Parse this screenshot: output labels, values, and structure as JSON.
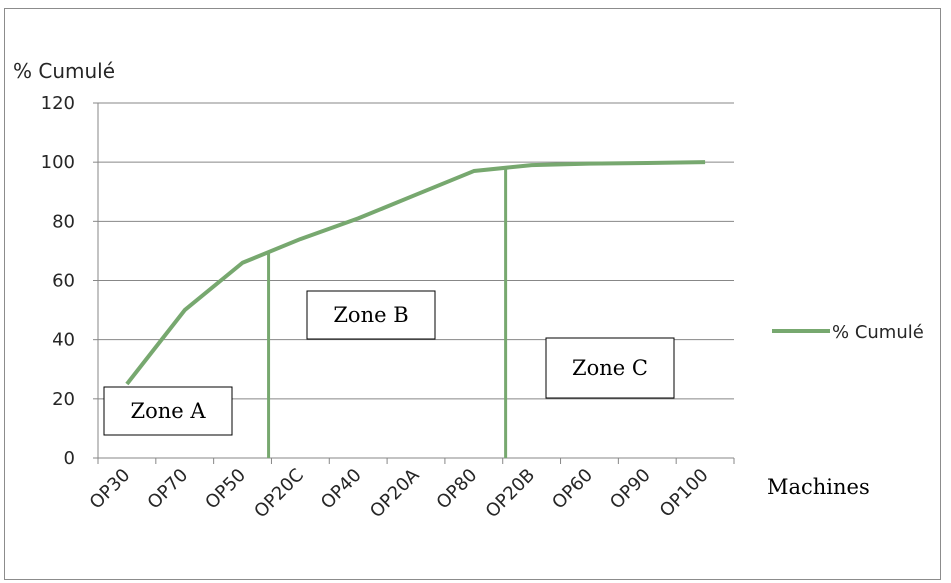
{
  "chart_data": {
    "type": "line",
    "ylabel": "% Cumulé",
    "xlabel": "Machines",
    "categories": [
      "OP30",
      "OP70",
      "OP50",
      "OP20C",
      "OP40",
      "OP20A",
      "OP80",
      "OP20B",
      "OP60",
      "OP90",
      "OP100"
    ],
    "series": [
      {
        "name": "% Cumulé",
        "values": [
          25,
          50,
          66,
          74,
          81,
          89,
          97,
          99,
          99.5,
          99.7,
          100
        ],
        "color": "#77a86f"
      }
    ],
    "ylim": [
      0,
      120
    ],
    "yticks": [
      0,
      20,
      40,
      60,
      80,
      100,
      120
    ],
    "grid": true,
    "legend_position": "right",
    "zone_dividers_x": [
      2.45,
      6.55
    ],
    "annotations": [
      {
        "text": "Zone A"
      },
      {
        "text": "Zone B"
      },
      {
        "text": "Zone C"
      }
    ]
  }
}
